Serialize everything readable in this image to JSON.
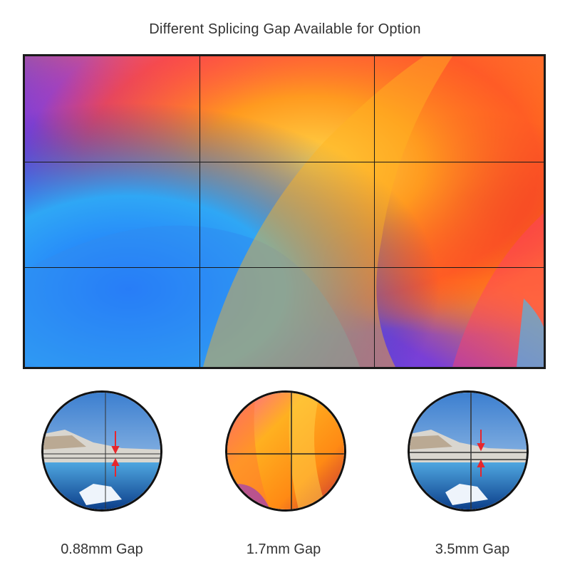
{
  "title": "Different Splicing Gap Available for Option",
  "video_wall": {
    "rows": 3,
    "columns": 3
  },
  "options": [
    {
      "label": "0.88mm Gap",
      "image": "snowy-landscape"
    },
    {
      "label": "1.7mm Gap",
      "image": "colorful-brush-art"
    },
    {
      "label": "3.5mm Gap",
      "image": "snowy-landscape"
    }
  ],
  "colors": {
    "seam": "#1a1a1a",
    "arrow": "#e8262c"
  }
}
